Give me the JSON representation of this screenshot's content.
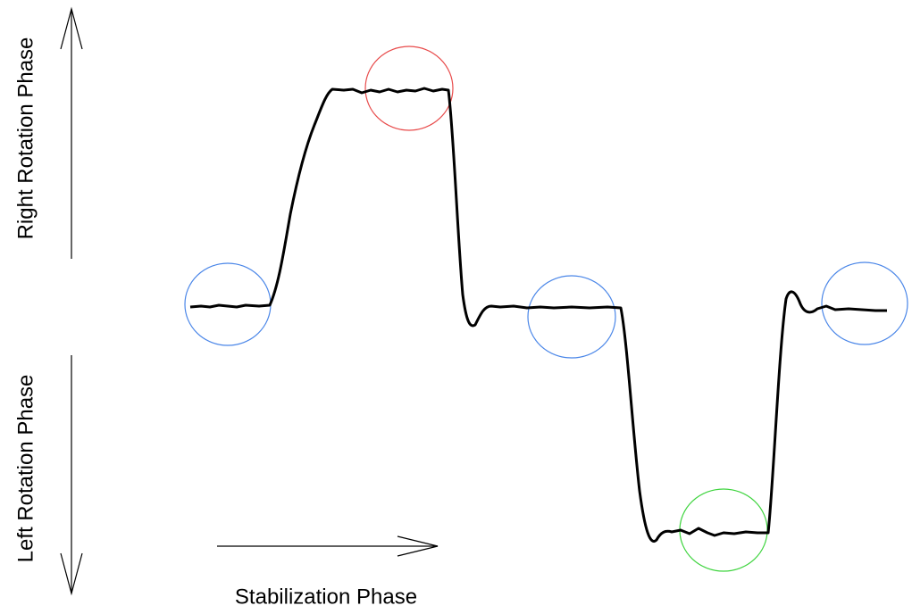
{
  "labels": {
    "right": "Right Rotation Phase",
    "left": "Left Rotation Phase",
    "stabilization": "Stabilization Phase"
  }
}
